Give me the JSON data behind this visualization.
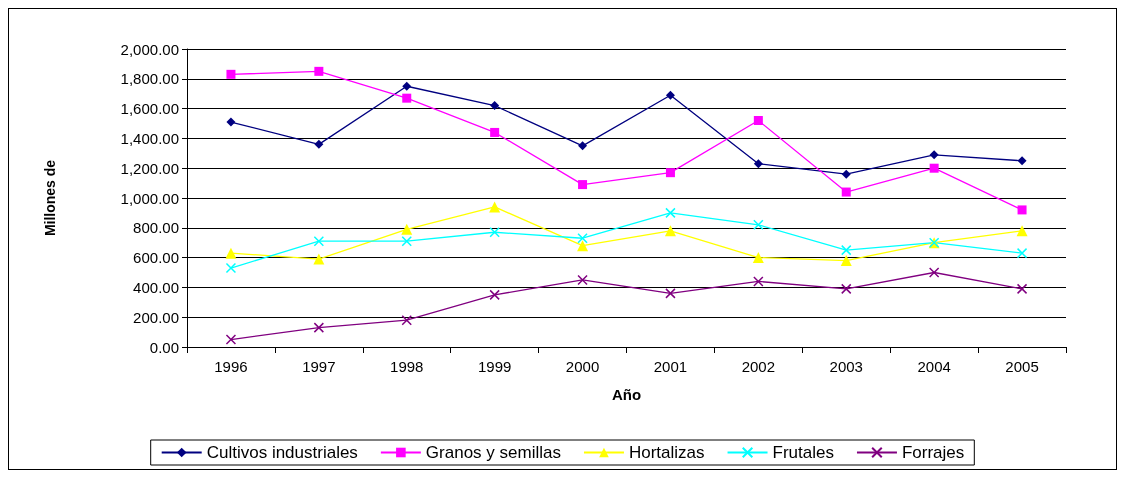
{
  "chart_data": {
    "type": "line",
    "xlabel": "Año",
    "ylabel": "Millones de",
    "categories": [
      "1996",
      "1997",
      "1998",
      "1999",
      "2000",
      "2001",
      "2002",
      "2003",
      "2004",
      "2005"
    ],
    "series": [
      {
        "name": "Cultivos industriales",
        "color": "#000080",
        "marker": "diamond",
        "values": [
          1510,
          1360,
          1750,
          1620,
          1350,
          1690,
          1230,
          1160,
          1290,
          1250
        ]
      },
      {
        "name": "Granos y semillas",
        "color": "#ff00ff",
        "marker": "square",
        "values": [
          1830,
          1850,
          1670,
          1440,
          1090,
          1170,
          1520,
          1040,
          1200,
          920
        ]
      },
      {
        "name": "Hortalizas",
        "color": "#ffff00",
        "marker": "triangle",
        "values": [
          630,
          590,
          790,
          940,
          680,
          780,
          600,
          580,
          700,
          780
        ]
      },
      {
        "name": "Frutales",
        "color": "#00ffff",
        "marker": "cross",
        "values": [
          530,
          710,
          710,
          770,
          730,
          900,
          820,
          650,
          700,
          630
        ]
      },
      {
        "name": "Forrajes",
        "color": "#800080",
        "marker": "cross",
        "values": [
          50,
          130,
          180,
          350,
          450,
          360,
          440,
          390,
          500,
          390
        ]
      }
    ],
    "ylim": [
      0,
      2000
    ],
    "yticks": [
      {
        "value": 0,
        "label": "0.00"
      },
      {
        "value": 200,
        "label": "200.00"
      },
      {
        "value": 400,
        "label": "400.00"
      },
      {
        "value": 600,
        "label": "600.00"
      },
      {
        "value": 800,
        "label": "800.00"
      },
      {
        "value": 1000,
        "label": "1,000.00"
      },
      {
        "value": 1200,
        "label": "1,200.00"
      },
      {
        "value": 1400,
        "label": "1,400.00"
      },
      {
        "value": 1600,
        "label": "1,600.00"
      },
      {
        "value": 1800,
        "label": "1,800.00"
      },
      {
        "value": 2000,
        "label": "2,000.00"
      }
    ],
    "grid": "y",
    "legend": "bottom"
  }
}
